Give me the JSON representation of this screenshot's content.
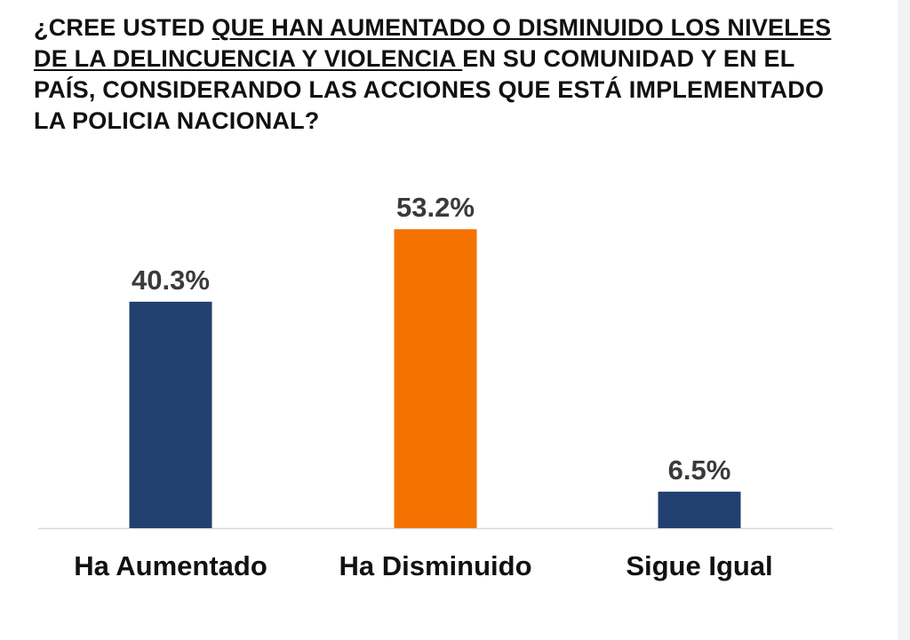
{
  "title": {
    "pre": "¿CREE USTED ",
    "underlined": "QUE HAN AUMENTADO O DISMINUIDO LOS NIVELES DE LA DELINCUENCIA Y VIOLENCIA ",
    "post": "EN SU COMUNIDAD Y EN EL PAÍS, CONSIDERANDO LAS ACCIONES QUE ESTÁ IMPLEMENTADO LA POLICIA NACIONAL?"
  },
  "chart_data": {
    "type": "bar",
    "title": "¿CREE USTED QUE HAN AUMENTADO O DISMINUIDO LOS NIVELES DE LA DELINCUENCIA Y VIOLENCIA EN SU COMUNIDAD Y EN EL PAÍS, CONSIDERANDO LAS ACCIONES QUE ESTÁ IMPLEMENTADO LA POLICIA NACIONAL?",
    "categories": [
      "Ha Aumentado",
      "Ha Disminuido",
      "Sigue Igual"
    ],
    "values": [
      40.3,
      53.2,
      6.5
    ],
    "value_labels": [
      "40.3%",
      "53.2%",
      "6.5%"
    ],
    "colors": [
      "#22406f",
      "#f47200",
      "#22406f"
    ],
    "xlabel": "",
    "ylabel": "",
    "ylim": [
      0,
      55
    ],
    "grid": false,
    "legend": "none"
  },
  "colors": {
    "axis": "#d9d9d9"
  }
}
